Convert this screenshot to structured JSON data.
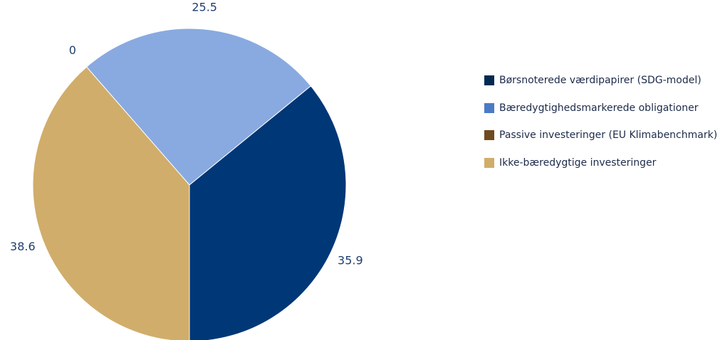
{
  "chart_data": {
    "type": "pie",
    "categories": [
      "Børsnoterede værdipapirer (SDG-model)",
      "Bæredygtighedsmarkerede obligationer",
      "Passive investeringer (EU Klimabenchmark)",
      "Ikke-bæredygtige investeringer"
    ],
    "values": [
      35.9,
      25.5,
      0,
      38.6
    ],
    "data_labels": [
      "35.9",
      "25.5",
      "0",
      "38.6"
    ],
    "slice_colors": [
      "#003776",
      "#89aae0",
      "#6e4a1e",
      "#d0ad6a"
    ],
    "legend_colors": [
      "#002a52",
      "#4a7cc6",
      "#6e4a1e",
      "#d0ad6a"
    ],
    "legend_position": "right",
    "start_angle": "bottom, counterclockwise"
  }
}
